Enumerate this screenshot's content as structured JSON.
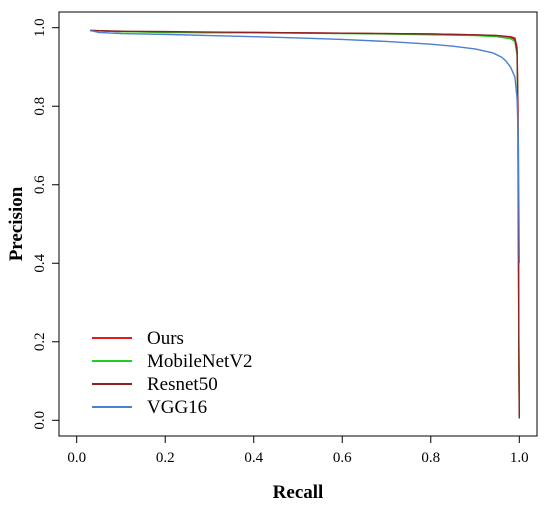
{
  "chart_data": {
    "type": "line",
    "title": "",
    "xlabel": "Recall",
    "ylabel": "Precision",
    "xlim": [
      -0.04,
      1.04
    ],
    "ylim": [
      -0.04,
      1.04
    ],
    "x_ticks": [
      "0.0",
      "0.2",
      "0.4",
      "0.6",
      "0.8",
      "1.0"
    ],
    "y_ticks": [
      "0.0",
      "0.2",
      "0.4",
      "0.6",
      "0.8",
      "1.0"
    ],
    "grid": false,
    "legend_position": "bottom-left",
    "series": [
      {
        "name": "Ours",
        "color": "#e41a1c",
        "x": [
          0.03,
          0.1,
          0.2,
          0.3,
          0.4,
          0.5,
          0.6,
          0.7,
          0.8,
          0.9,
          0.95,
          0.98,
          0.99,
          0.995,
          0.997,
          0.998,
          0.999,
          1.0
        ],
        "y": [
          0.993,
          0.99,
          0.989,
          0.988,
          0.988,
          0.987,
          0.986,
          0.985,
          0.984,
          0.982,
          0.98,
          0.977,
          0.974,
          0.95,
          0.8,
          0.5,
          0.2,
          0.005
        ]
      },
      {
        "name": "MobileNetV2",
        "color": "#1fcf1f",
        "x": [
          0.03,
          0.1,
          0.2,
          0.3,
          0.4,
          0.5,
          0.6,
          0.7,
          0.8,
          0.9,
          0.95,
          0.98,
          0.99,
          0.995,
          0.997,
          0.998,
          0.999,
          1.0
        ],
        "y": [
          0.993,
          0.99,
          0.988,
          0.987,
          0.987,
          0.986,
          0.985,
          0.984,
          0.982,
          0.98,
          0.977,
          0.972,
          0.965,
          0.93,
          0.75,
          0.45,
          0.15,
          0.005
        ]
      },
      {
        "name": "Resnet50",
        "color": "#8b2323",
        "x": [
          0.03,
          0.1,
          0.2,
          0.3,
          0.4,
          0.5,
          0.6,
          0.7,
          0.8,
          0.9,
          0.95,
          0.98,
          0.99,
          0.995,
          0.997,
          0.998,
          0.999,
          1.0
        ],
        "y": [
          0.993,
          0.991,
          0.99,
          0.989,
          0.988,
          0.987,
          0.986,
          0.985,
          0.984,
          0.982,
          0.98,
          0.976,
          0.97,
          0.94,
          0.78,
          0.48,
          0.18,
          0.005
        ]
      },
      {
        "name": "VGG16",
        "color": "#4a7fd4",
        "x": [
          0.03,
          0.05,
          0.1,
          0.2,
          0.3,
          0.4,
          0.5,
          0.6,
          0.7,
          0.8,
          0.85,
          0.9,
          0.94,
          0.96,
          0.97,
          0.98,
          0.99,
          0.995,
          0.998,
          1.0
        ],
        "y": [
          0.993,
          0.988,
          0.985,
          0.983,
          0.98,
          0.977,
          0.974,
          0.97,
          0.965,
          0.958,
          0.953,
          0.946,
          0.936,
          0.925,
          0.915,
          0.9,
          0.875,
          0.82,
          0.7,
          0.4
        ]
      }
    ]
  }
}
